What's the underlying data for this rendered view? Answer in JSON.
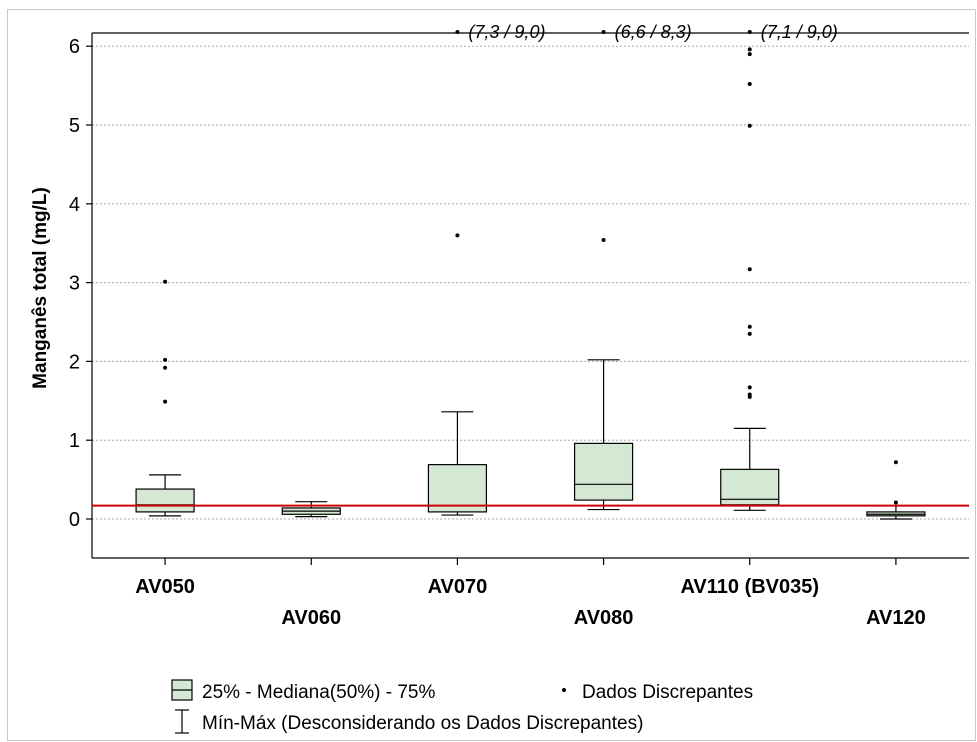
{
  "chart_data": {
    "type": "box",
    "ylabel": "Manganês total (mg/L)",
    "ylim": [
      -0.5,
      6.1
    ],
    "yticks": [
      0,
      1,
      2,
      3,
      4,
      5,
      6
    ],
    "grid": true,
    "reference_line": 0.17,
    "reference_color": "#cc0000",
    "box_color": "#d5e8d4",
    "categories": [
      "AV050",
      "AV060",
      "AV070",
      "AV080",
      "AV110 (BV035)",
      "AV120"
    ],
    "boxes": [
      {
        "q1": 0.09,
        "median": 0.18,
        "q3": 0.38,
        "min": 0.04,
        "max": 0.56,
        "outliers": [
          1.49,
          1.92,
          2.02,
          3.01
        ]
      },
      {
        "q1": 0.06,
        "median": 0.1,
        "q3": 0.14,
        "min": 0.03,
        "max": 0.22,
        "outliers": []
      },
      {
        "q1": 0.09,
        "median": 0.17,
        "q3": 0.69,
        "min": 0.05,
        "max": 1.36,
        "outliers": [
          3.6
        ]
      },
      {
        "q1": 0.24,
        "median": 0.44,
        "q3": 0.96,
        "min": 0.12,
        "max": 2.02,
        "outliers": [
          3.54
        ]
      },
      {
        "q1": 0.18,
        "median": 0.25,
        "q3": 0.63,
        "min": 0.11,
        "max": 1.15,
        "outliers": [
          1.55,
          1.58,
          1.67,
          2.35,
          2.44,
          3.17,
          4.99,
          5.52,
          5.9,
          5.96
        ]
      },
      {
        "q1": 0.04,
        "median": 0.06,
        "q3": 0.09,
        "min": 0.0,
        "max": 0.17,
        "outliers": [
          0.21,
          0.72
        ]
      }
    ],
    "offscale_notes": [
      {
        "category_index": 2,
        "text": "(7,3 / 9,0)"
      },
      {
        "category_index": 3,
        "text": "(6,6 / 8,3)"
      },
      {
        "category_index": 4,
        "text": "(7,1 / 9,0)"
      }
    ],
    "legend": {
      "box": "25% - Mediana(50%) - 75%",
      "outliers": "Dados Discrepantes",
      "whisker": "Mín-Máx (Desconsiderando os Dados Discrepantes)"
    }
  }
}
